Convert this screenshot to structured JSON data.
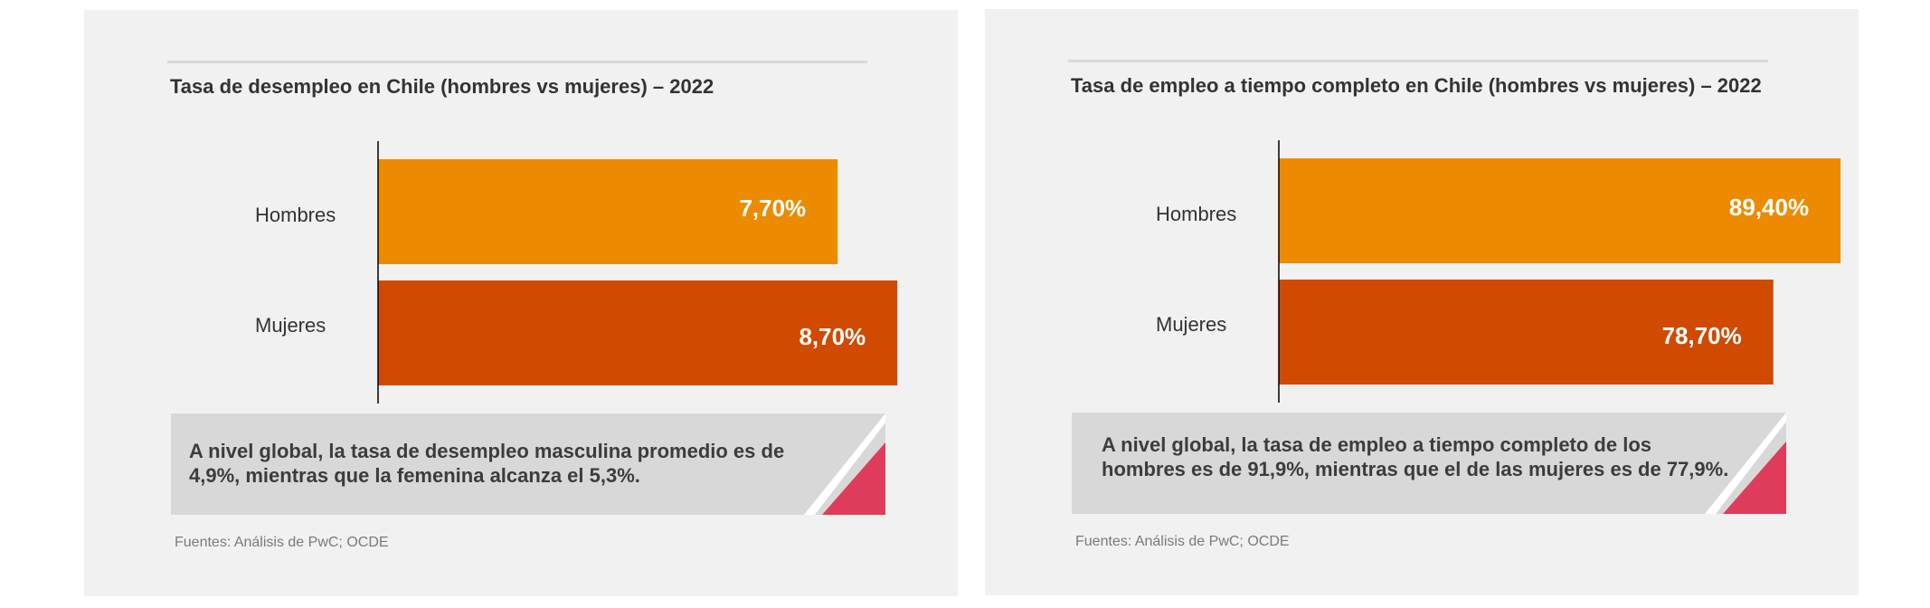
{
  "colors": {
    "hombres": "#ec8b00",
    "mujeres": "#d04a02",
    "corner_accent": "#de3c5a"
  },
  "panels": [
    {
      "title": "Tasa de desempleo en Chile (hombres vs mujeres) – 2022",
      "callout": "A nivel global, la tasa de desempleo masculina promedio es de 4,9%, mientras que la femenina alcanza el 5,3%.",
      "source": "Fuentes: Análisis de PwC; OCDE"
    },
    {
      "title": "Tasa de empleo a tiempo completo en Chile (hombres vs mujeres) – 2022",
      "callout": "A nivel global, la tasa de empleo a tiempo completo de los hombres es de 91,9%, mientras que el de las mujeres es de 77,9%.",
      "source": "Fuentes: Análisis de PwC; OCDE"
    }
  ],
  "chart_data": [
    {
      "type": "bar",
      "orientation": "horizontal",
      "title": "Tasa de desempleo en Chile (hombres vs mujeres) – 2022",
      "categories": [
        "Hombres",
        "Mujeres"
      ],
      "values": [
        7.7,
        8.7
      ],
      "value_labels": [
        "7,70%",
        "8,70%"
      ],
      "xlim": [
        0,
        10
      ],
      "xlabel": "",
      "ylabel": "",
      "grid": false
    },
    {
      "type": "bar",
      "orientation": "horizontal",
      "title": "Tasa de empleo a tiempo completo en Chile (hombres vs mujeres) – 2022",
      "categories": [
        "Hombres",
        "Mujeres"
      ],
      "values": [
        89.4,
        78.7
      ],
      "value_labels": [
        "89,40%",
        "78,70%"
      ],
      "xlim": [
        0,
        95
      ],
      "xlabel": "",
      "ylabel": "",
      "grid": false
    }
  ]
}
